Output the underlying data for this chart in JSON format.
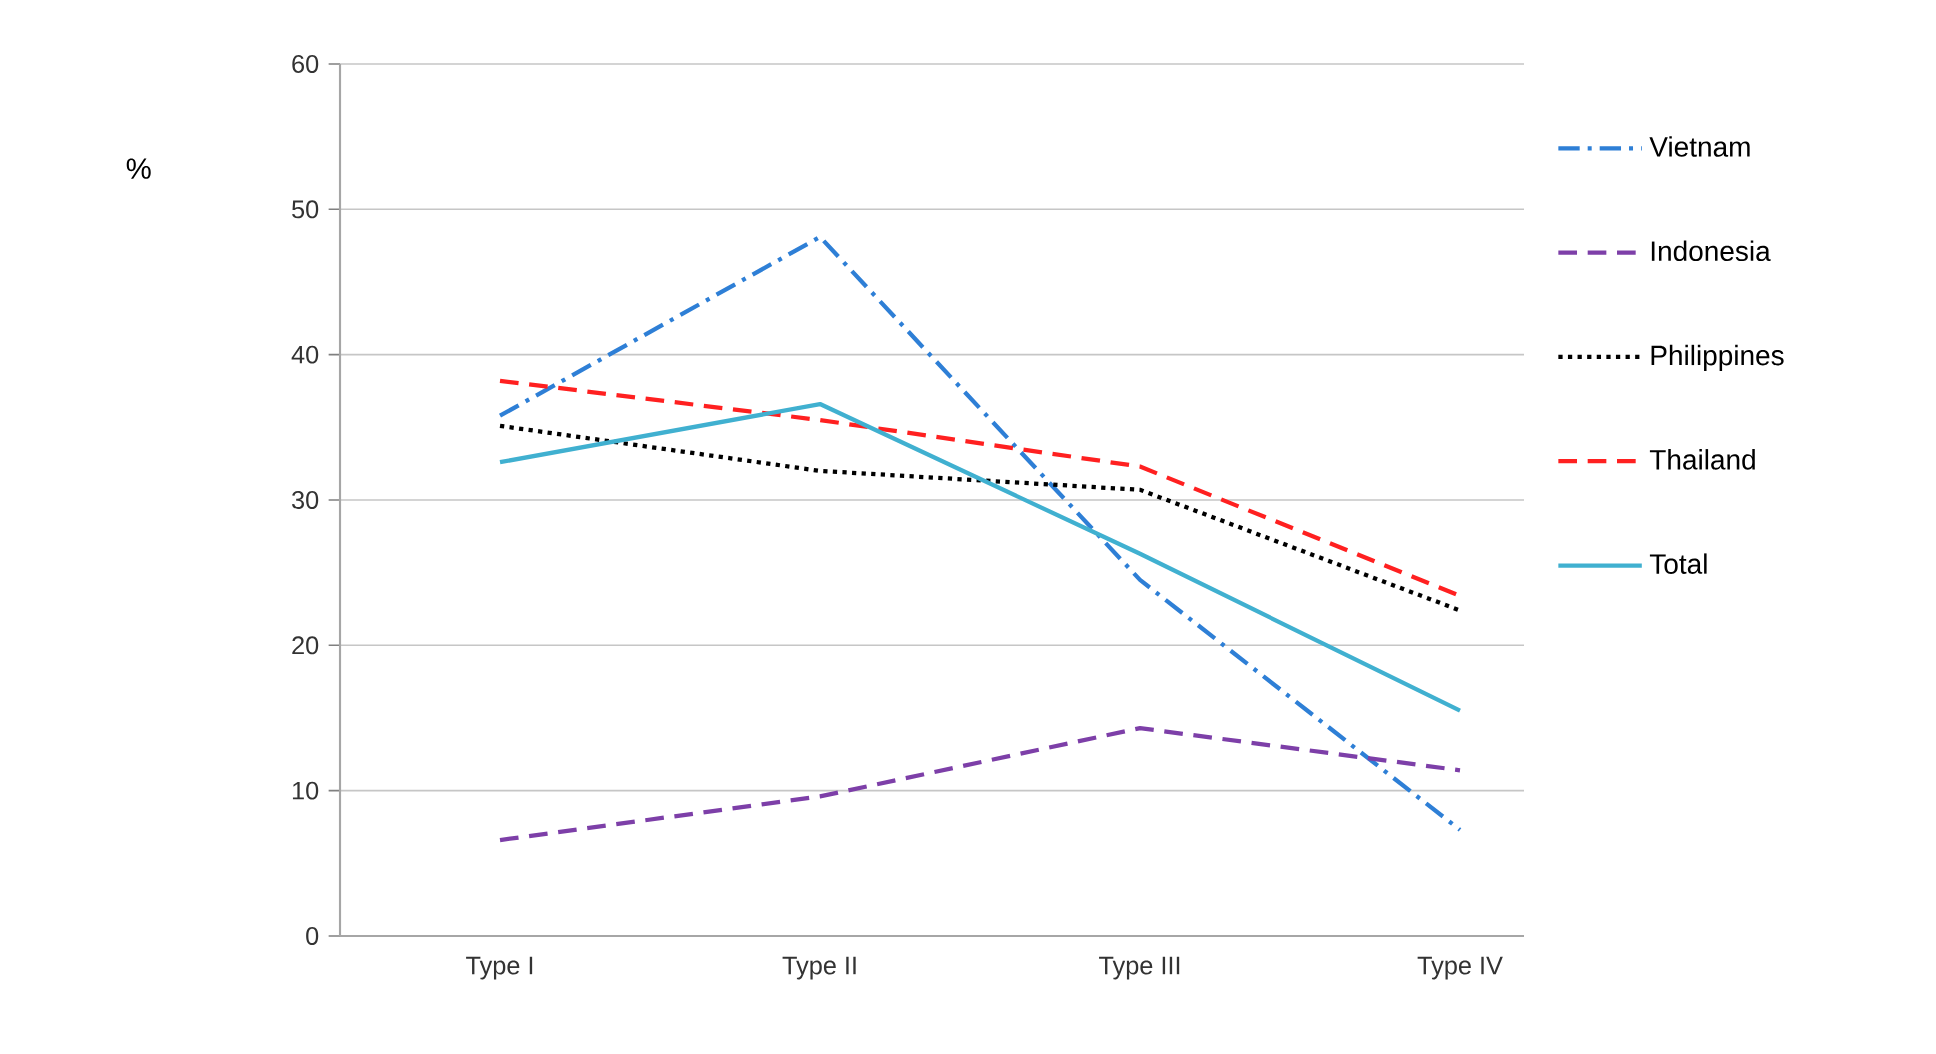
{
  "chart_data": {
    "type": "line",
    "ylabel": "%",
    "categories": [
      "Type I",
      "Type II",
      "Type III",
      "Type IV"
    ],
    "series": [
      {
        "name": "Vietnam",
        "color": "#2e7fd6",
        "line_style": "dashdot",
        "values": [
          35.8,
          48.1,
          24.5,
          7.3
        ]
      },
      {
        "name": "Indonesia",
        "color": "#7d3fa8",
        "line_style": "dashed",
        "values": [
          6.6,
          9.6,
          14.3,
          11.4
        ]
      },
      {
        "name": "Philippines",
        "color": "#000000",
        "line_style": "dotted",
        "values": [
          35.1,
          32.0,
          30.7,
          22.4
        ]
      },
      {
        "name": "Thailand",
        "color": "#ff2020",
        "line_style": "dashed",
        "values": [
          38.2,
          35.5,
          32.3,
          23.4
        ]
      },
      {
        "name": "Total",
        "color": "#40b0d0",
        "line_style": "solid",
        "values": [
          32.6,
          36.6,
          26.3,
          15.5
        ]
      }
    ],
    "ylim": [
      0,
      60
    ],
    "yticks": [
      0,
      10,
      20,
      30,
      40,
      50,
      60
    ],
    "grid": "y",
    "legend": "right",
    "marker": "none"
  }
}
